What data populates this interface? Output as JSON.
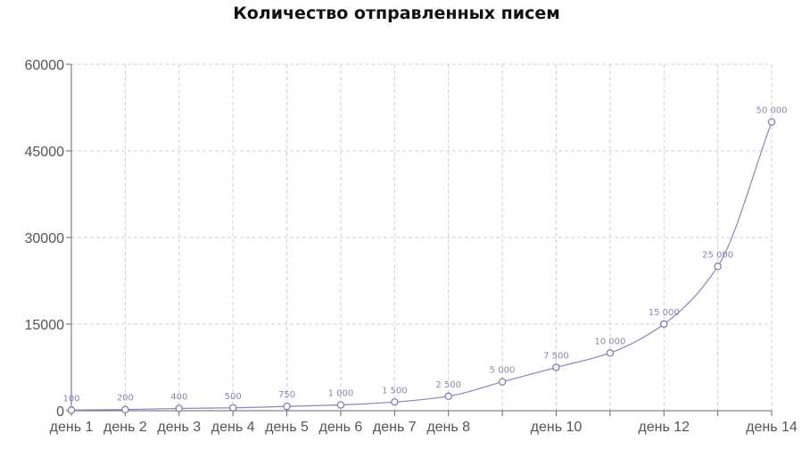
{
  "chart_data": {
    "type": "line",
    "title": "Количество отправленных писем",
    "xlabel": "",
    "ylabel": "",
    "ylim": [
      0,
      60000
    ],
    "yticks": [
      "0",
      "15000",
      "30000",
      "45000",
      "60000"
    ],
    "x": [
      "день 1",
      "день 2",
      "день 3",
      "день 4",
      "день 5",
      "день 6",
      "день 7",
      "день 8",
      "день 9",
      "день 10",
      "день 11",
      "день 12",
      "день 13",
      "день 14"
    ],
    "xtick_labels": [
      "день 1",
      "день 2",
      "день 3",
      "день 4",
      "день 5",
      "день 6",
      "день 7",
      "день 8",
      "",
      "день 10",
      "",
      "день 12",
      "",
      "день 14"
    ],
    "values": [
      100,
      200,
      400,
      500,
      750,
      1000,
      1500,
      2500,
      5000,
      7500,
      10000,
      15000,
      25000,
      50000
    ],
    "data_labels": [
      "100",
      "200",
      "400",
      "500",
      "750",
      "1 000",
      "1 500",
      "2 500",
      "5 000",
      "7 500",
      "10 000",
      "15 000",
      "25 000",
      "50 000"
    ],
    "grid": true,
    "legend": "none",
    "colors": {
      "line": "#8a84b8",
      "point_stroke": "#7b75ad",
      "label": "#8a84b8"
    }
  }
}
